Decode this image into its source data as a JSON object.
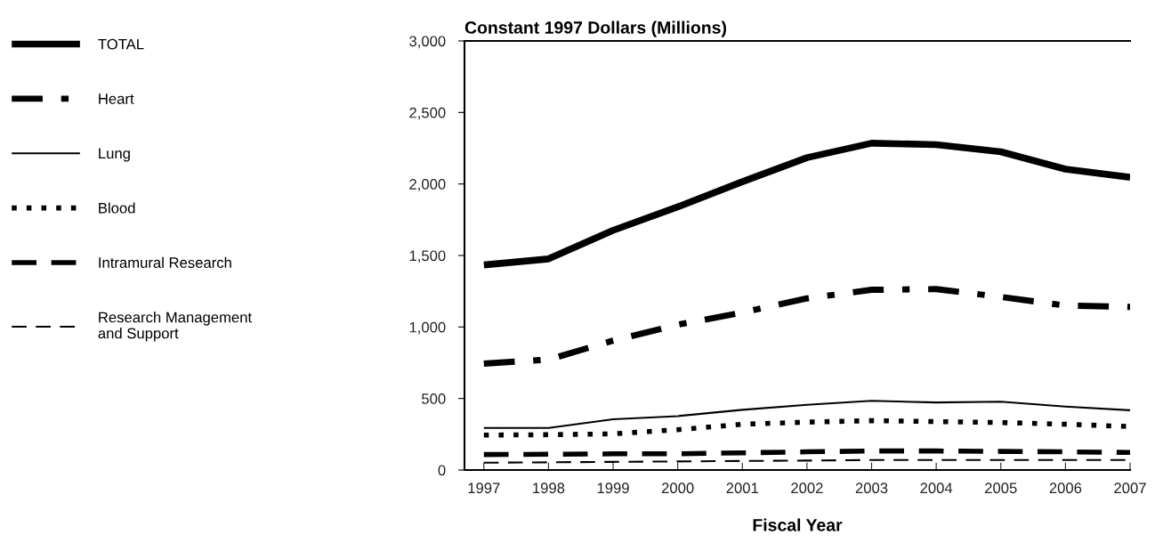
{
  "chart_data": {
    "type": "line",
    "title": "Constant 1997 Dollars (Millions)",
    "xlabel": "Fiscal Year",
    "x": [
      1997,
      1998,
      1999,
      2000,
      2001,
      2002,
      2003,
      2004,
      2005,
      2006,
      2007
    ],
    "xlim": [
      1996.7,
      2007
    ],
    "xticks": [
      1997,
      1998,
      1999,
      2000,
      2001,
      2002,
      2003,
      2004,
      2005,
      2006,
      2007
    ],
    "ylim": [
      0,
      3000
    ],
    "yticks": [
      {
        "value": 0,
        "label": "0"
      },
      {
        "value": 500,
        "label": "500"
      },
      {
        "value": 1000,
        "label": "1,000"
      },
      {
        "value": 1500,
        "label": "1,500"
      },
      {
        "value": 2000,
        "label": "2,000"
      },
      {
        "value": 2500,
        "label": "2,500"
      },
      {
        "value": 3000,
        "label": "3,000"
      }
    ],
    "grid": false,
    "legend": "left",
    "marker": "none",
    "series": [
      {
        "name": "TOTAL",
        "color": "#000000",
        "line_style": "solid",
        "values": [
          1434,
          1476,
          1676,
          1840,
          2016,
          2184,
          2285,
          2275,
          2225,
          2104,
          2047
        ]
      },
      {
        "name": "Heart",
        "color": "#000000",
        "line_style": "dashdot",
        "values": [
          744,
          772,
          905,
          1016,
          1101,
          1200,
          1260,
          1265,
          1210,
          1150,
          1140
        ]
      },
      {
        "name": "Lung",
        "color": "#000000",
        "line_style": "solid",
        "values": [
          294,
          294,
          355,
          377,
          421,
          456,
          484,
          472,
          478,
          443,
          418
        ]
      },
      {
        "name": "Blood",
        "color": "#000000",
        "line_style": "dotted",
        "values": [
          244,
          247,
          253,
          282,
          320,
          335,
          345,
          339,
          332,
          320,
          304
        ]
      },
      {
        "name": "Intramural Research",
        "color": "#000000",
        "line_style": "dashed",
        "values": [
          108,
          110,
          113,
          113,
          120,
          127,
          133,
          133,
          130,
          127,
          123
        ]
      },
      {
        "name": "Research Management\nand Support",
        "color": "#000000",
        "line_style": "dashed",
        "values": [
          51,
          54,
          57,
          60,
          63,
          66,
          70,
          70,
          70,
          70,
          70
        ]
      }
    ]
  }
}
